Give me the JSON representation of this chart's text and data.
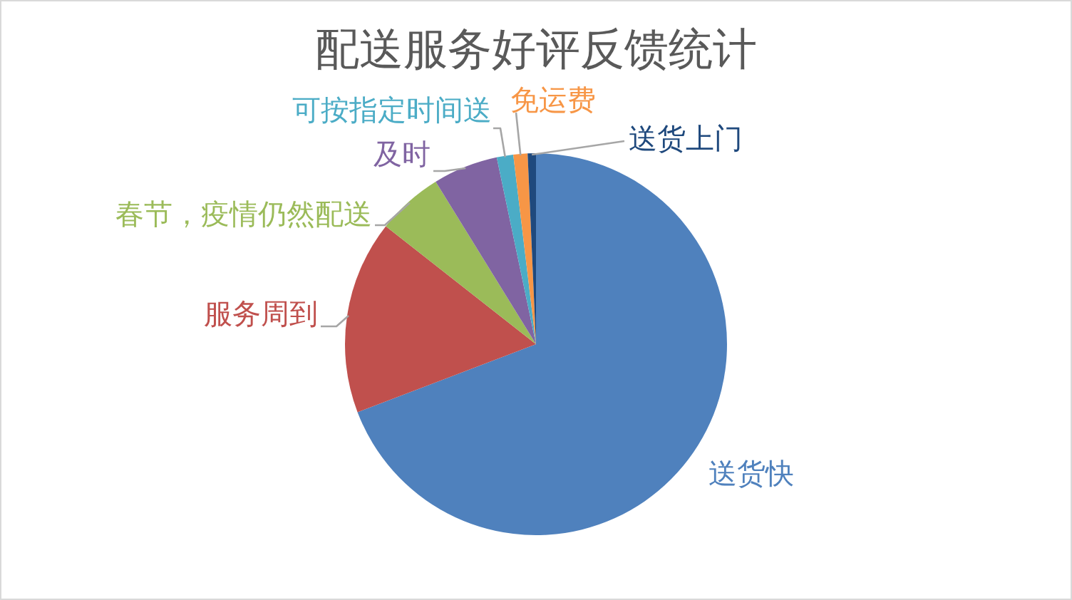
{
  "chart_data": {
    "type": "pie",
    "title": "配送服务好评反馈统计",
    "categories": [
      "送货快",
      "服务周到",
      "春节，疫情仍然配送",
      "及时",
      "可按指定时间送",
      "免运费",
      "送货上门"
    ],
    "values": [
      69.2,
      16.4,
      5.6,
      5.5,
      1.4,
      1.2,
      0.7
    ],
    "colors": [
      "#4f81bd",
      "#c0504d",
      "#9bbb59",
      "#8064a2",
      "#4bacc6",
      "#f79646",
      "#1f497d"
    ]
  }
}
